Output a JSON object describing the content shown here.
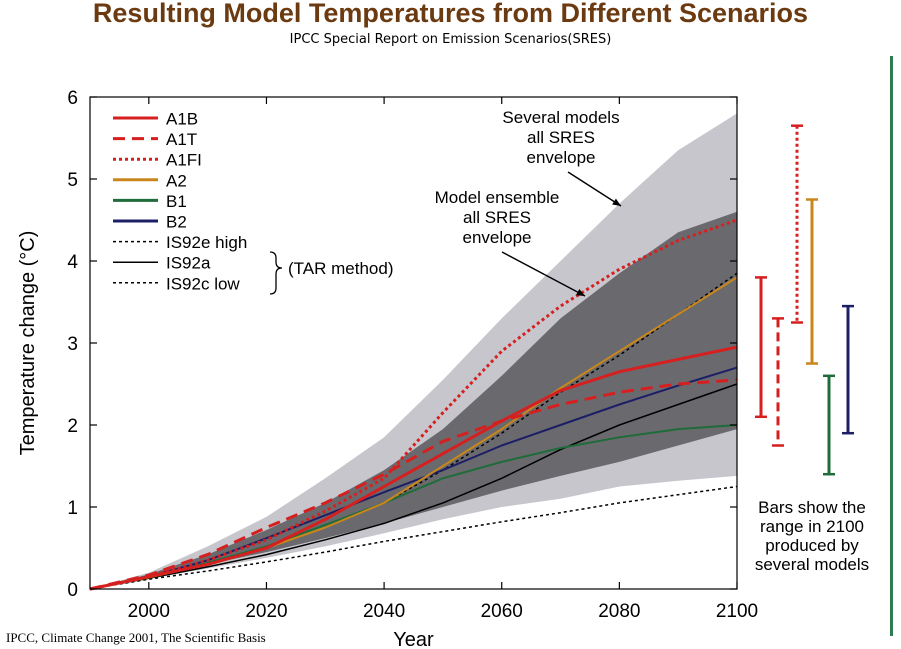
{
  "title": "Resulting Model Temperatures from Different Scenarios",
  "subtitle": "IPCC Special Report on Emission Scenarios(SRES)",
  "citation": "IPCC, Climate Change 2001, The Scientific Basis",
  "colors": {
    "title": "#6b3a10",
    "A1B": "#d61f1f",
    "A1T": "#d61f1f",
    "A1FI": "#d61f1f",
    "A2": "#c8861b",
    "B1": "#1f6b3a",
    "B2": "#1c1f66",
    "IS92": "#000000",
    "outer_envelope": "#c6c6cc",
    "inner_envelope": "#6a6a6e",
    "side_rule": "#2e7d4f"
  },
  "chart_data": {
    "type": "area",
    "xlabel": "Year",
    "ylabel": "Temperature change (°C)",
    "xlim": [
      1990,
      2100
    ],
    "ylim": [
      0,
      6
    ],
    "x_ticks": [
      2000,
      2020,
      2040,
      2060,
      2080,
      2100
    ],
    "y_ticks": [
      0,
      1,
      2,
      3,
      4,
      5,
      6
    ],
    "grid": false,
    "legend_position": "top-left",
    "envelopes": [
      {
        "name": "Several models all SRES envelope",
        "x": [
          1990,
          2000,
          2010,
          2020,
          2030,
          2040,
          2050,
          2060,
          2070,
          2080,
          2090,
          2100
        ],
        "lower": [
          0,
          0.12,
          0.25,
          0.38,
          0.52,
          0.68,
          0.85,
          1.0,
          1.1,
          1.25,
          1.32,
          1.38
        ],
        "upper": [
          0,
          0.2,
          0.52,
          0.88,
          1.35,
          1.85,
          2.55,
          3.3,
          4.0,
          4.7,
          5.35,
          5.8
        ]
      },
      {
        "name": "Model ensemble all SRES envelope",
        "x": [
          1990,
          2000,
          2010,
          2020,
          2030,
          2040,
          2050,
          2060,
          2070,
          2080,
          2090,
          2100
        ],
        "lower": [
          0,
          0.15,
          0.3,
          0.45,
          0.62,
          0.8,
          1.0,
          1.2,
          1.38,
          1.55,
          1.75,
          1.95
        ],
        "upper": [
          0,
          0.18,
          0.42,
          0.72,
          1.05,
          1.45,
          1.95,
          2.6,
          3.3,
          3.85,
          4.35,
          4.6
        ]
      }
    ],
    "series": [
      {
        "name": "A1B",
        "style": "solid",
        "color": "#d61f1f",
        "width": 3,
        "x": [
          1990,
          2000,
          2010,
          2020,
          2030,
          2040,
          2050,
          2060,
          2070,
          2080,
          2090,
          2100
        ],
        "y": [
          0,
          0.15,
          0.3,
          0.5,
          0.85,
          1.25,
          1.65,
          2.05,
          2.42,
          2.65,
          2.8,
          2.95
        ]
      },
      {
        "name": "A1T",
        "style": "dashed",
        "color": "#d61f1f",
        "width": 3,
        "x": [
          1990,
          2000,
          2010,
          2020,
          2030,
          2040,
          2050,
          2060,
          2070,
          2080,
          2090,
          2100
        ],
        "y": [
          0,
          0.17,
          0.42,
          0.75,
          1.05,
          1.4,
          1.8,
          2.05,
          2.25,
          2.4,
          2.5,
          2.55
        ]
      },
      {
        "name": "A1FI",
        "style": "dotted",
        "color": "#d61f1f",
        "width": 3,
        "x": [
          1990,
          2000,
          2010,
          2020,
          2030,
          2040,
          2050,
          2060,
          2070,
          2080,
          2090,
          2100
        ],
        "y": [
          0,
          0.15,
          0.35,
          0.6,
          0.95,
          1.35,
          2.15,
          2.9,
          3.45,
          3.9,
          4.25,
          4.5
        ]
      },
      {
        "name": "A2",
        "style": "solid",
        "color": "#c8861b",
        "width": 2,
        "x": [
          1990,
          2000,
          2010,
          2020,
          2030,
          2040,
          2050,
          2060,
          2070,
          2080,
          2090,
          2100
        ],
        "y": [
          0,
          0.14,
          0.3,
          0.5,
          0.75,
          1.05,
          1.5,
          1.95,
          2.45,
          2.9,
          3.35,
          3.8
        ]
      },
      {
        "name": "B1",
        "style": "solid",
        "color": "#1f6b3a",
        "width": 2,
        "x": [
          1990,
          2000,
          2010,
          2020,
          2030,
          2040,
          2050,
          2060,
          2070,
          2080,
          2090,
          2100
        ],
        "y": [
          0,
          0.15,
          0.32,
          0.52,
          0.78,
          1.05,
          1.35,
          1.55,
          1.72,
          1.85,
          1.95,
          2.0
        ]
      },
      {
        "name": "B2",
        "style": "solid",
        "color": "#1c1f66",
        "width": 2,
        "x": [
          1990,
          2000,
          2010,
          2020,
          2030,
          2040,
          2050,
          2060,
          2070,
          2080,
          2090,
          2100
        ],
        "y": [
          0,
          0.15,
          0.35,
          0.62,
          0.9,
          1.18,
          1.45,
          1.75,
          2.0,
          2.25,
          2.48,
          2.7
        ]
      },
      {
        "name": "IS92e high",
        "style": "dotted",
        "color": "#000000",
        "width": 1.5,
        "x": [
          1990,
          2000,
          2010,
          2020,
          2030,
          2040,
          2050,
          2060,
          2070,
          2080,
          2090,
          2100
        ],
        "y": [
          0,
          0.14,
          0.3,
          0.5,
          0.75,
          1.05,
          1.45,
          1.9,
          2.4,
          2.85,
          3.35,
          3.85
        ]
      },
      {
        "name": "IS92a",
        "style": "solid",
        "color": "#000000",
        "width": 1.5,
        "x": [
          1990,
          2000,
          2010,
          2020,
          2030,
          2040,
          2050,
          2060,
          2070,
          2080,
          2090,
          2100
        ],
        "y": [
          0,
          0.13,
          0.27,
          0.42,
          0.6,
          0.8,
          1.05,
          1.35,
          1.7,
          2.0,
          2.25,
          2.5
        ]
      },
      {
        "name": "IS92c low",
        "style": "dotted",
        "color": "#000000",
        "width": 1.5,
        "x": [
          1990,
          2000,
          2010,
          2020,
          2030,
          2040,
          2050,
          2060,
          2070,
          2080,
          2090,
          2100
        ],
        "y": [
          0,
          0.12,
          0.22,
          0.33,
          0.45,
          0.58,
          0.7,
          0.82,
          0.93,
          1.05,
          1.15,
          1.25
        ]
      }
    ],
    "range_bars_2100": [
      {
        "name": "A1B",
        "style": "solid",
        "color": "#d61f1f",
        "min": 2.1,
        "max": 3.8
      },
      {
        "name": "A1T",
        "style": "dashed",
        "color": "#d61f1f",
        "min": 1.75,
        "max": 3.3
      },
      {
        "name": "A1FI",
        "style": "dotted",
        "color": "#d61f1f",
        "min": 3.25,
        "max": 5.65
      },
      {
        "name": "A2",
        "style": "solid",
        "color": "#c8861b",
        "min": 2.75,
        "max": 4.75
      },
      {
        "name": "B1",
        "style": "solid",
        "color": "#1f6b3a",
        "min": 1.4,
        "max": 2.6
      },
      {
        "name": "B2",
        "style": "solid",
        "color": "#1c1f66",
        "min": 1.9,
        "max": 3.45
      }
    ],
    "legend_group_label": "(TAR method)",
    "annotations": {
      "outer_envelope": [
        "Several models",
        "all SRES",
        "envelope"
      ],
      "inner_envelope": [
        "Model ensemble",
        "all SRES",
        "envelope"
      ],
      "bars_note": [
        "Bars show the",
        "range in 2100",
        "produced by",
        "several models"
      ]
    }
  }
}
